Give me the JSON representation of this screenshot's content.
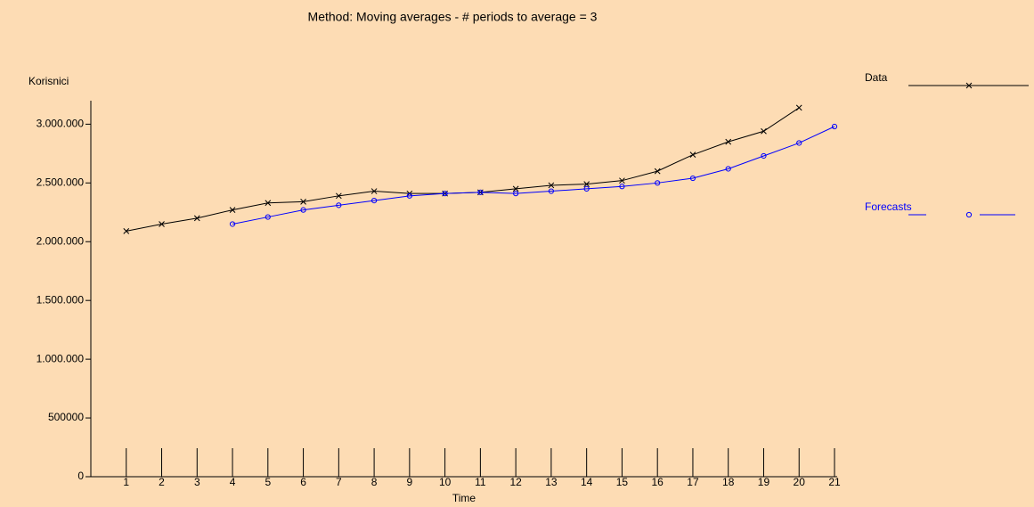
{
  "chart_data": {
    "type": "line",
    "title": "Method: Moving averages - # periods to average = 3",
    "y_label": "Korisnici",
    "x_label": "Time",
    "x": [
      1,
      2,
      3,
      4,
      5,
      6,
      7,
      8,
      9,
      10,
      11,
      12,
      13,
      14,
      15,
      16,
      17,
      18,
      19,
      20,
      21
    ],
    "series": [
      {
        "name": "Data",
        "color": "#000000",
        "marker": "x",
        "values": [
          2090000,
          2150000,
          2200000,
          2270000,
          2330000,
          2340000,
          2390000,
          2430000,
          2410000,
          2410000,
          2420000,
          2450000,
          2480000,
          2490000,
          2520000,
          2600000,
          2740000,
          2850000,
          2940000,
          3140000,
          null
        ]
      },
      {
        "name": "Forecasts",
        "color": "#0000ff",
        "marker": "o",
        "values": [
          null,
          null,
          null,
          2150000,
          2210000,
          2270000,
          2310000,
          2350000,
          2390000,
          2410000,
          2420000,
          2410000,
          2430000,
          2450000,
          2470000,
          2500000,
          2540000,
          2620000,
          2730000,
          2840000,
          2980000
        ]
      }
    ],
    "xlim": [
      0,
      21
    ],
    "xticks": [
      1,
      2,
      3,
      4,
      5,
      6,
      7,
      8,
      9,
      10,
      11,
      12,
      13,
      14,
      15,
      16,
      17,
      18,
      19,
      20,
      21
    ],
    "ylim": [
      0,
      3200000
    ],
    "yticks": [
      0,
      500000,
      {
        "value": 1000000,
        "label": "1.000.000"
      },
      {
        "value": 1500000,
        "label": "1.500.000"
      },
      {
        "value": 2000000,
        "label": "2.000.000"
      },
      {
        "value": 2500000,
        "label": "2.500.000"
      },
      {
        "value": 3000000,
        "label": "3.000.000"
      }
    ],
    "legend": "right"
  }
}
